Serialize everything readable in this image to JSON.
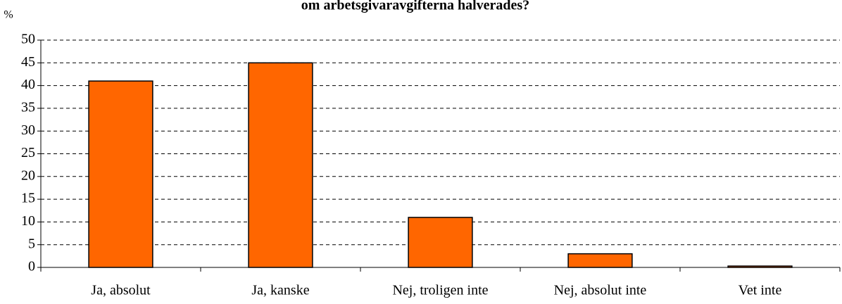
{
  "chart_data": {
    "type": "bar",
    "title": "om arbetsgivaravgifterna halverades?",
    "y_label": "%",
    "categories": [
      "Ja, absolut",
      "Ja, kanske",
      "Nej, troligen inte",
      "Nej, absolut inte",
      "Vet inte"
    ],
    "values": [
      41,
      45,
      11,
      3,
      0.3
    ],
    "color": "#ff6600",
    "ylim": [
      0,
      50
    ],
    "yticks": [
      0,
      5,
      10,
      15,
      20,
      25,
      30,
      35,
      40,
      45,
      50
    ],
    "grid": true
  }
}
